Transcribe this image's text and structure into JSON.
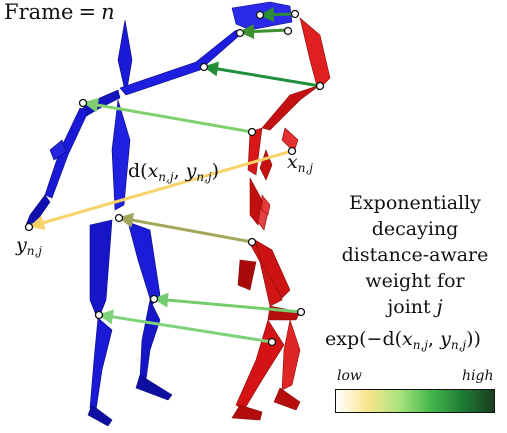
{
  "frame_title": {
    "text": "Frame",
    "eq": "=",
    "var": "n"
  },
  "x_label": {
    "base": "x",
    "sub": "n,j"
  },
  "y_label": {
    "base": "y",
    "sub": "n,j"
  },
  "d_label": {
    "text": "d(",
    "x": "x",
    "xsub": "n,j",
    "comma": ", ",
    "y": "y",
    "ysub": "n,j",
    "close": ")"
  },
  "description": [
    "Exponentially",
    "decaying",
    "distance-aware",
    "weight for",
    "joint",
    "j"
  ],
  "exp_label": {
    "prefix": "exp(−d(",
    "x": "x",
    "xsub": "n,j",
    "comma": ", ",
    "y": "y",
    "ysub": "n,j",
    "suffix": "))"
  },
  "colorbar": {
    "low": "low",
    "high": "high",
    "stops": [
      "#ffffff",
      "#fbe48d",
      "#a9e37e",
      "#45b84c",
      "#1e7a35",
      "#1a3f1f"
    ]
  },
  "colors": {
    "blue_skeleton": "#1a1ad6",
    "red_skeleton": "#d41414",
    "joint_fill": "#ffffff"
  },
  "arrows": [
    {
      "joint": "head-top",
      "weight_color": "#2e8b3a"
    },
    {
      "joint": "neck",
      "weight_color": "#3d8f2f"
    },
    {
      "joint": "right-shoulder",
      "weight_color": "#1f8f3a"
    },
    {
      "joint": "elbow",
      "weight_color": "#7fcf6f"
    },
    {
      "joint": "wrist",
      "weight_color": "#f8d36a"
    },
    {
      "joint": "hip",
      "weight_color": "#a3a75a"
    },
    {
      "joint": "knee",
      "weight_color": "#74cd6c"
    },
    {
      "joint": "ankle",
      "weight_color": "#7fd279"
    }
  ]
}
